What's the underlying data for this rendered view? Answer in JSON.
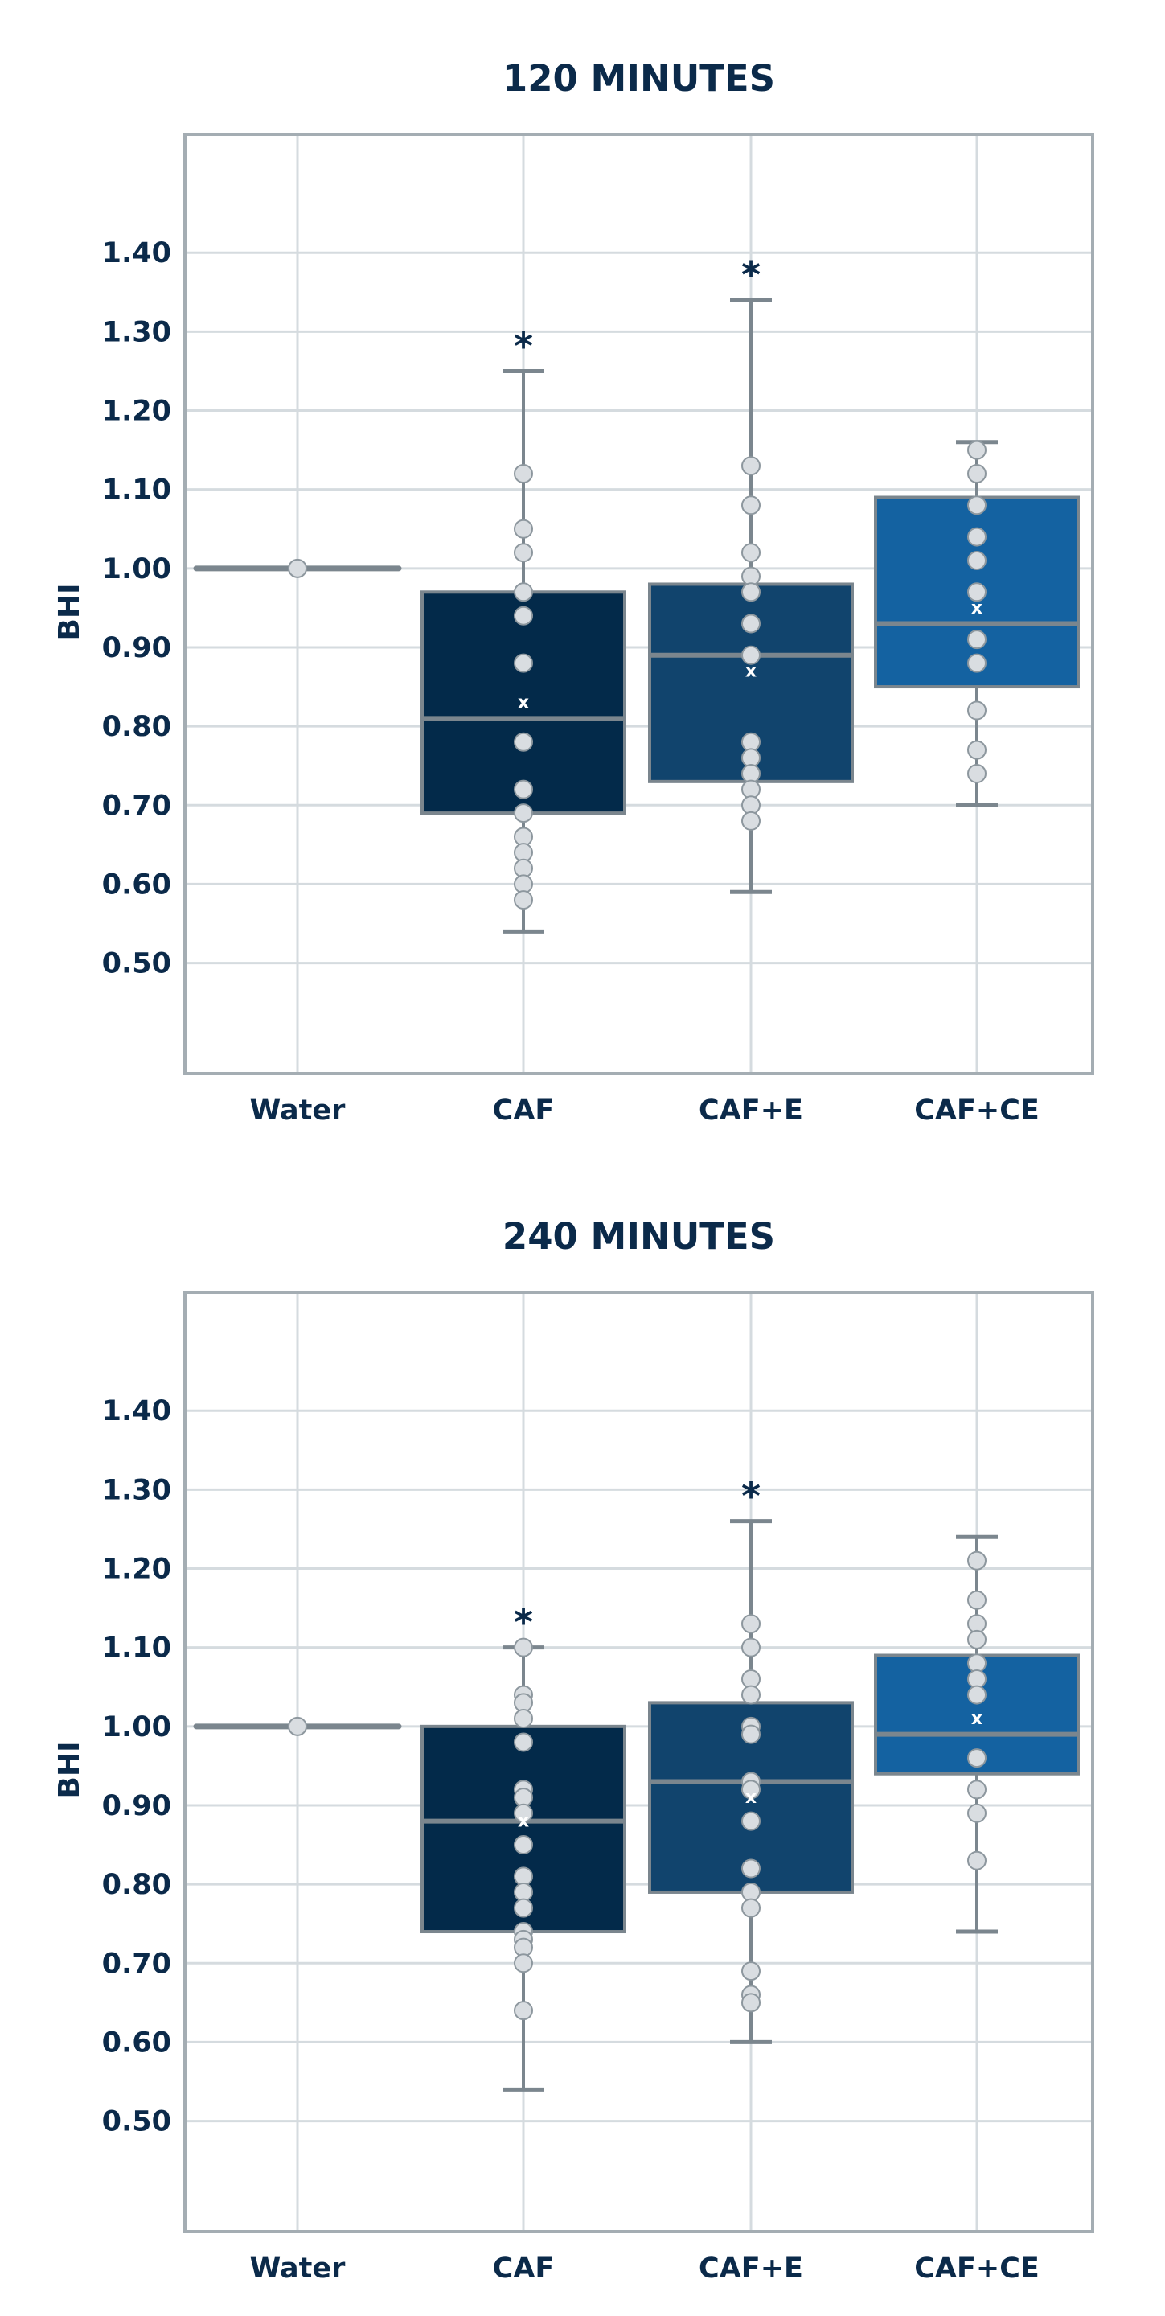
{
  "chart_data": [
    {
      "type": "box",
      "title": "120 MINUTES",
      "ylabel": "BHI",
      "categories": [
        "Water",
        "CAF",
        "CAF+E",
        "CAF+CE"
      ],
      "yticks": [
        "0.50",
        "0.60",
        "0.70",
        "0.80",
        "0.90",
        "1.00",
        "1.10",
        "1.20",
        "1.30",
        "1.40"
      ],
      "ylim": [
        0.36,
        1.55
      ],
      "grid": true,
      "colors": {
        "Water": "#7b868e",
        "CAF": "#032a4a",
        "CAF+E": "#11446d",
        "CAF+CE": "#1462a1"
      },
      "boxes": [
        {
          "category": "Water",
          "q1": 1.0,
          "median": 1.0,
          "q3": 1.0,
          "whisker_low": 1.0,
          "whisker_high": 1.0,
          "mean": 1.0,
          "points": [
            1.0
          ],
          "star": false
        },
        {
          "category": "CAF",
          "q1": 0.69,
          "median": 0.81,
          "q3": 0.97,
          "whisker_low": 0.54,
          "whisker_high": 1.25,
          "mean": 0.83,
          "points": [
            1.12,
            1.05,
            1.02,
            0.97,
            0.94,
            0.88,
            0.78,
            0.72,
            0.69,
            0.66,
            0.64,
            0.62,
            0.6,
            0.58
          ],
          "star": true
        },
        {
          "category": "CAF+E",
          "q1": 0.73,
          "median": 0.89,
          "q3": 0.98,
          "whisker_low": 0.59,
          "whisker_high": 1.34,
          "mean": 0.87,
          "points": [
            1.13,
            1.08,
            1.02,
            0.99,
            0.97,
            0.93,
            0.89,
            0.78,
            0.76,
            0.74,
            0.72,
            0.7,
            0.68
          ],
          "star": true
        },
        {
          "category": "CAF+CE",
          "q1": 0.85,
          "median": 0.93,
          "q3": 1.09,
          "whisker_low": 0.7,
          "whisker_high": 1.16,
          "mean": 0.95,
          "points": [
            1.15,
            1.12,
            1.08,
            1.04,
            1.01,
            0.97,
            0.91,
            0.88,
            0.82,
            0.77,
            0.74
          ],
          "star": false
        }
      ]
    },
    {
      "type": "box",
      "title": "240 MINUTES",
      "ylabel": "BHI",
      "categories": [
        "Water",
        "CAF",
        "CAF+E",
        "CAF+CE"
      ],
      "yticks": [
        "0.50",
        "0.60",
        "0.70",
        "0.80",
        "0.90",
        "1.00",
        "1.10",
        "1.20",
        "1.30",
        "1.40"
      ],
      "ylim": [
        0.36,
        1.55
      ],
      "grid": true,
      "colors": {
        "Water": "#7b868e",
        "CAF": "#032a4a",
        "CAF+E": "#11446d",
        "CAF+CE": "#1462a1"
      },
      "boxes": [
        {
          "category": "Water",
          "q1": 1.0,
          "median": 1.0,
          "q3": 1.0,
          "whisker_low": 1.0,
          "whisker_high": 1.0,
          "mean": 1.0,
          "points": [
            1.0
          ],
          "star": false
        },
        {
          "category": "CAF",
          "q1": 0.74,
          "median": 0.88,
          "q3": 1.0,
          "whisker_low": 0.54,
          "whisker_high": 1.1,
          "mean": 0.88,
          "points": [
            1.1,
            1.04,
            1.03,
            1.01,
            0.98,
            0.92,
            0.91,
            0.89,
            0.85,
            0.81,
            0.79,
            0.77,
            0.74,
            0.73,
            0.72,
            0.7,
            0.64
          ],
          "star": true
        },
        {
          "category": "CAF+E",
          "q1": 0.79,
          "median": 0.93,
          "q3": 1.03,
          "whisker_low": 0.6,
          "whisker_high": 1.26,
          "mean": 0.91,
          "points": [
            1.13,
            1.1,
            1.06,
            1.04,
            1.0,
            0.99,
            0.93,
            0.92,
            0.88,
            0.82,
            0.79,
            0.77,
            0.69,
            0.66,
            0.65
          ],
          "star": true
        },
        {
          "category": "CAF+CE",
          "q1": 0.94,
          "median": 0.99,
          "q3": 1.09,
          "whisker_low": 0.74,
          "whisker_high": 1.24,
          "mean": 1.01,
          "points": [
            1.21,
            1.16,
            1.13,
            1.11,
            1.08,
            1.06,
            1.04,
            0.96,
            0.92,
            0.89,
            0.83
          ],
          "star": false
        }
      ]
    }
  ]
}
